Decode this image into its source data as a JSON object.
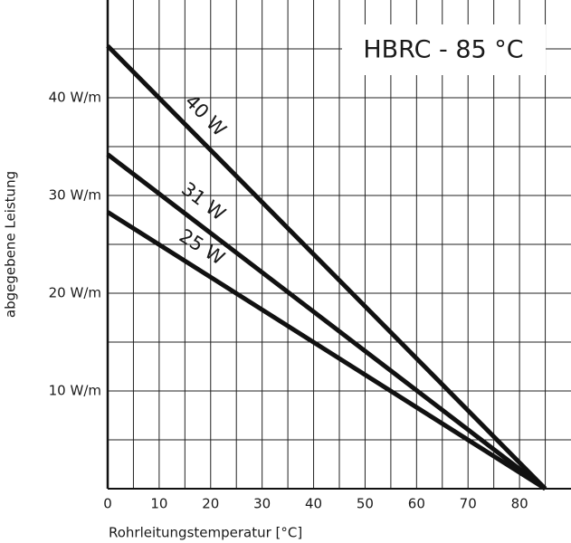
{
  "chart_data": {
    "type": "line",
    "title": "HBRC  -  85  °C",
    "x_label": "Rohrleitungstemperatur  [°C]",
    "y_label": "abgegebene  Leistung",
    "x": [
      0,
      85
    ],
    "series": [
      {
        "name": "40 W",
        "color": "#111111",
        "values": [
          45.3,
          0
        ]
      },
      {
        "name": "31 W",
        "color": "#111111",
        "values": [
          34.2,
          0
        ]
      },
      {
        "name": "25 W",
        "color": "#111111",
        "values": [
          28.3,
          0
        ]
      }
    ],
    "xlim": [
      0,
      90
    ],
    "ylim": [
      0,
      50
    ],
    "xticks": [
      0,
      10,
      20,
      30,
      40,
      50,
      60,
      70,
      80
    ],
    "minor_xticks": [
      5,
      15,
      25,
      35,
      45,
      55,
      65,
      75,
      85
    ],
    "yticks": [
      {
        "value": 10,
        "label": "10  W/m"
      },
      {
        "value": 20,
        "label": "20  W/m"
      },
      {
        "value": 30,
        "label": "30  W/m"
      },
      {
        "value": 40,
        "label": "40  W/m"
      }
    ],
    "minor_yticks": [
      5,
      15,
      25,
      35,
      45
    ],
    "grid": true
  }
}
